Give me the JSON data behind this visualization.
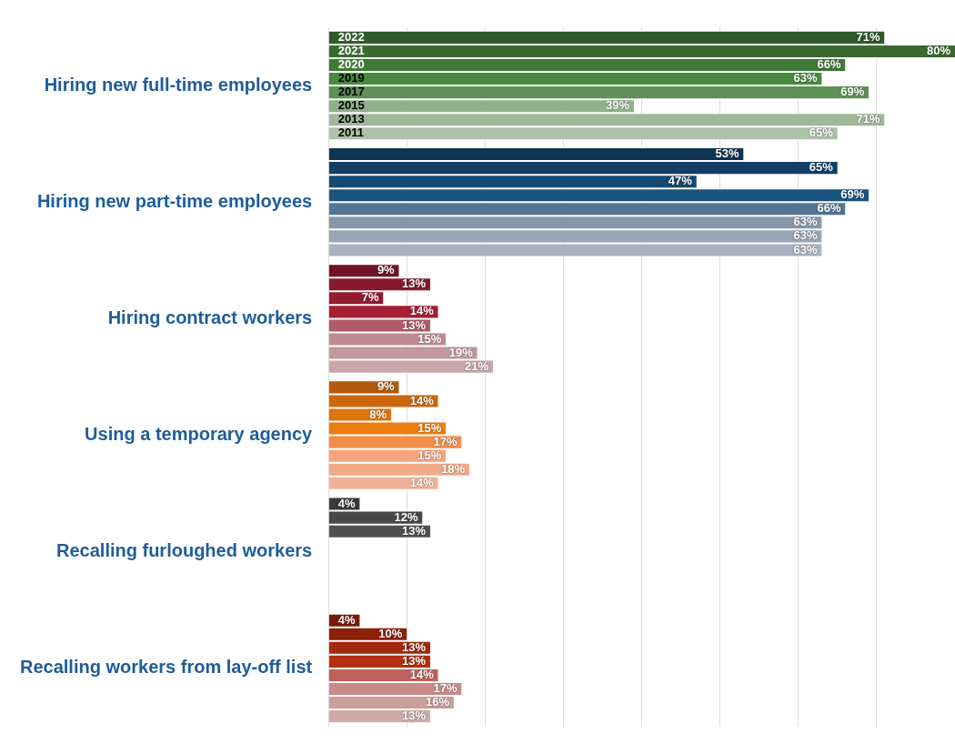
{
  "chart_data": {
    "type": "bar",
    "orientation": "horizontal",
    "categories": [
      "Hiring new full-time employees",
      "Hiring new part-time employees",
      "Hiring contract workers",
      "Using a temporary agency",
      "Recalling furloughed workers",
      "Recalling workers from lay-off list"
    ],
    "series": [
      {
        "name": "2022",
        "values": [
          71,
          53,
          9,
          9,
          4,
          4
        ],
        "value_labels": [
          "71%",
          "53%",
          "9%",
          "9%",
          "4%",
          "4%"
        ],
        "colors": [
          "#2f5a2a",
          "#0f3350",
          "#6e1424",
          "#b35a0c",
          "#3a3a3a",
          "#7a1a05"
        ]
      },
      {
        "name": "2021",
        "values": [
          80,
          65,
          13,
          14,
          12,
          10
        ],
        "value_labels": [
          "80%",
          "65%",
          "13%",
          "14%",
          "12%",
          "10%"
        ],
        "colors": [
          "#3a6a30",
          "#123f63",
          "#861a2c",
          "#cc670e",
          "#484848",
          "#8e2008"
        ]
      },
      {
        "name": "2020",
        "values": [
          66,
          47,
          7,
          8,
          13,
          13
        ],
        "value_labels": [
          "66%",
          "47%",
          "7%",
          "8%",
          "13%",
          "13%"
        ],
        "colors": [
          "#3f7a36",
          "#174a72",
          "#931b30",
          "#de7410",
          "#505050",
          "#a4280c"
        ]
      },
      {
        "name": "2019",
        "values": [
          63,
          69,
          14,
          15,
          null,
          13
        ],
        "value_labels": [
          "63%",
          "69%",
          "14%",
          "15%",
          null,
          "13%"
        ],
        "colors": [
          "#4a8a3e",
          "#1a5580",
          "#a51f35",
          "#ee7d12",
          "#505050",
          "#b2300e"
        ]
      },
      {
        "name": "2017",
        "values": [
          69,
          66,
          13,
          17,
          null,
          14
        ],
        "value_labels": [
          "69%",
          "66%",
          "13%",
          "17%",
          null,
          "14%"
        ],
        "colors": [
          "#5e9058",
          "#557595",
          "#b25a66",
          "#f28d4a",
          "#505050",
          "#c0605a"
        ]
      },
      {
        "name": "2015",
        "values": [
          39,
          63,
          15,
          15,
          null,
          17
        ],
        "value_labels": [
          "39%",
          "63%",
          "15%",
          "15%",
          null,
          "17%"
        ],
        "colors": [
          "#8fb08a",
          "#8797ab",
          "#c08a93",
          "#f4a57c",
          "#505050",
          "#c88c88"
        ]
      },
      {
        "name": "2013",
        "values": [
          71,
          63,
          19,
          18,
          null,
          16
        ],
        "value_labels": [
          "71%",
          "63%",
          "19%",
          "18%",
          null,
          "16%"
        ],
        "colors": [
          "#9fb89a",
          "#98a5b6",
          "#c2979e",
          "#f3aa86",
          "#505050",
          "#c99e9b"
        ]
      },
      {
        "name": "2011",
        "values": [
          65,
          63,
          21,
          14,
          null,
          13
        ],
        "value_labels": [
          "65%",
          "63%",
          "21%",
          "14%",
          null,
          "13%"
        ],
        "colors": [
          "#aec1aa",
          "#a9b2c0",
          "#c9a6ab",
          "#f0b294",
          "#505050",
          "#cfaaa8"
        ]
      }
    ],
    "xlim": [
      0,
      80
    ],
    "xticks": [
      {
        "value": 0,
        "label": null
      },
      {
        "value": 10,
        "label": null
      },
      {
        "value": 20,
        "label": null
      },
      {
        "value": 30,
        "label": null
      },
      {
        "value": 40,
        "label": null
      },
      {
        "value": 50,
        "label": null
      },
      {
        "value": 60,
        "label": null
      },
      {
        "value": 70,
        "label": null
      }
    ],
    "grid": "x",
    "tick_labels": "y",
    "legend": false
  }
}
